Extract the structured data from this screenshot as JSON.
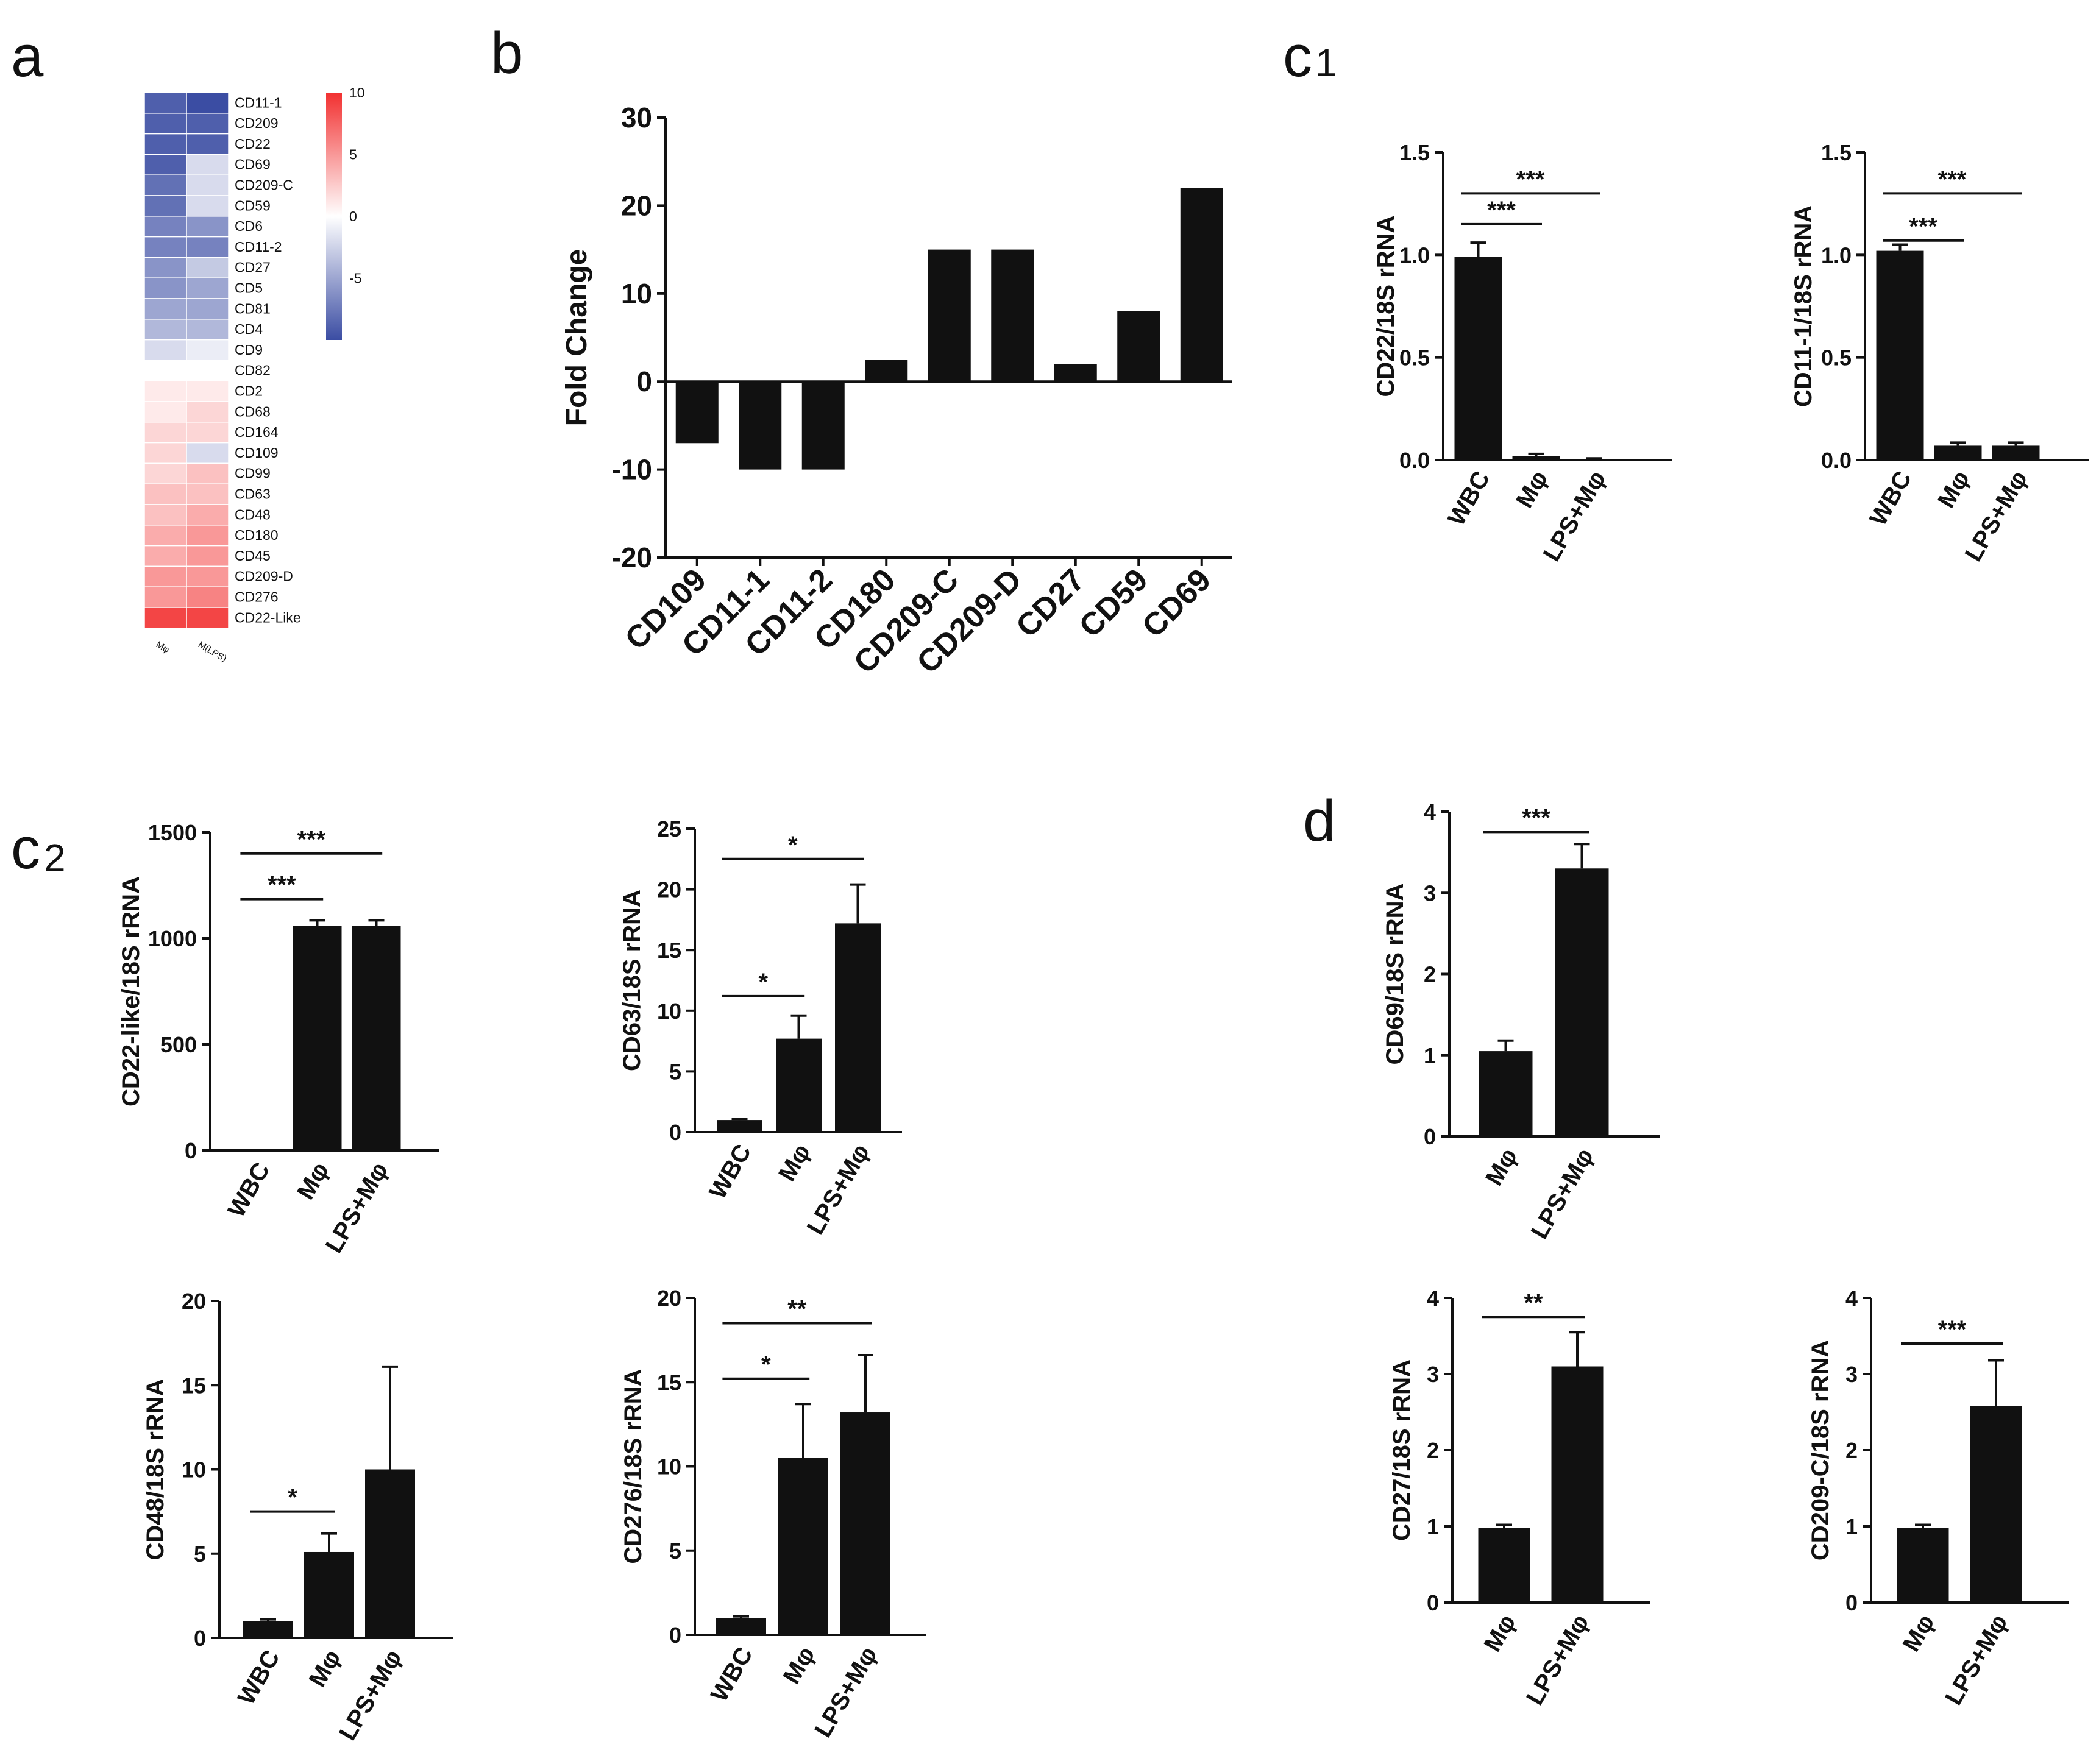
{
  "panel_labels": {
    "a": "a",
    "b": "b",
    "c1": "c",
    "c1_sub": "1",
    "c2": "c",
    "c2_sub": "2",
    "d": "d"
  },
  "colors": {
    "bar": "#111111",
    "heat_low": "#3b4da3",
    "heat_mid": "#ffffff",
    "heat_high": "#f23030"
  },
  "chart_data": [
    {
      "id": "a",
      "type": "heatmap",
      "columns": [
        "Mφ",
        "M(LPS)"
      ],
      "rows": [
        "CD11-1",
        "CD209",
        "CD22",
        "CD69",
        "CD209-C",
        "CD59",
        "CD6",
        "CD11-2",
        "CD27",
        "CD5",
        "CD81",
        "CD4",
        "CD9",
        "CD82",
        "CD2",
        "CD68",
        "CD164",
        "CD109",
        "CD99",
        "CD63",
        "CD48",
        "CD180",
        "CD45",
        "CD209-D",
        "CD276",
        "CD22-Like"
      ],
      "values": [
        [
          -9,
          -10
        ],
        [
          -9,
          -9
        ],
        [
          -9,
          -9
        ],
        [
          -9,
          -2
        ],
        [
          -8,
          -2
        ],
        [
          -8,
          -2
        ],
        [
          -7,
          -6
        ],
        [
          -7,
          -7
        ],
        [
          -6,
          -3
        ],
        [
          -6,
          -5
        ],
        [
          -5,
          -5
        ],
        [
          -4,
          -4
        ],
        [
          -2,
          -1
        ],
        [
          0,
          0
        ],
        [
          1,
          1
        ],
        [
          1,
          2
        ],
        [
          2,
          2
        ],
        [
          2,
          -2
        ],
        [
          2,
          3
        ],
        [
          3,
          3
        ],
        [
          3,
          4
        ],
        [
          4,
          5
        ],
        [
          4,
          5
        ],
        [
          5,
          5
        ],
        [
          5,
          6
        ],
        [
          9,
          9
        ]
      ],
      "colorbar": {
        "min": -10,
        "max": 10,
        "ticks": [
          10,
          5,
          0,
          -5
        ]
      }
    },
    {
      "id": "b",
      "type": "bar",
      "ylabel": "Fold Change",
      "ylim": [
        -20,
        30
      ],
      "yticks": [
        30,
        20,
        10,
        0,
        -10,
        -20
      ],
      "categories": [
        "CD109",
        "CD11-1",
        "CD11-2",
        "CD180",
        "CD209-C",
        "CD209-D",
        "CD27",
        "CD59",
        "CD69"
      ],
      "values": [
        -7,
        -10,
        -10,
        2.5,
        15,
        15,
        2,
        8,
        22
      ]
    },
    {
      "id": "c1_left",
      "type": "bar",
      "ylabel": "CD22/18S rRNA",
      "ylim": [
        0,
        1.5
      ],
      "yticks": [
        "0.0",
        "0.5",
        "1.0",
        "1.5"
      ],
      "categories": [
        "WBC",
        "Mφ",
        "LPS+Mφ"
      ],
      "values": [
        0.99,
        0.02,
        0.005
      ],
      "errors": [
        0.07,
        0.01,
        0.003
      ],
      "significance": [
        {
          "from": 0,
          "to": 2,
          "label": "***",
          "y": 1.3
        },
        {
          "from": 0,
          "to": 1,
          "label": "***",
          "y": 1.15
        }
      ]
    },
    {
      "id": "c1_right",
      "type": "bar",
      "ylabel": "CD11-1/18S rRNA",
      "ylim": [
        0,
        1.5
      ],
      "yticks": [
        "0.0",
        "0.5",
        "1.0",
        "1.5"
      ],
      "categories": [
        "WBC",
        "Mφ",
        "LPS+Mφ"
      ],
      "values": [
        1.02,
        0.07,
        0.07
      ],
      "errors": [
        0.03,
        0.015,
        0.015
      ],
      "significance": [
        {
          "from": 0,
          "to": 2,
          "label": "***",
          "y": 1.3
        },
        {
          "from": 0,
          "to": 1,
          "label": "***",
          "y": 1.07
        }
      ]
    },
    {
      "id": "c2_cd22like",
      "type": "bar",
      "ylabel": "CD22-like/18S rRNA",
      "ylim": [
        0,
        1500
      ],
      "yticks": [
        "0",
        "500",
        "1000",
        "1500"
      ],
      "categories": [
        "WBC",
        "Mφ",
        "LPS+Mφ"
      ],
      "values": [
        0,
        1060,
        1060
      ],
      "errors": [
        0,
        25,
        25
      ],
      "significance": [
        {
          "from": 0,
          "to": 2,
          "label": "***",
          "y": 1400
        },
        {
          "from": 0,
          "to": 1,
          "label": "***",
          "y": 1185
        }
      ]
    },
    {
      "id": "c2_cd63",
      "type": "bar",
      "ylabel": "CD63/18S rRNA",
      "ylim": [
        0,
        25
      ],
      "yticks": [
        "0",
        "5",
        "10",
        "15",
        "20",
        "25"
      ],
      "categories": [
        "WBC",
        "Mφ",
        "LPS+Mφ"
      ],
      "values": [
        1.0,
        7.7,
        17.2
      ],
      "errors": [
        0.1,
        1.9,
        3.2
      ],
      "significance": [
        {
          "from": 0,
          "to": 2,
          "label": "*",
          "y": 22.5
        },
        {
          "from": 0,
          "to": 1,
          "label": "*",
          "y": 11.2
        }
      ]
    },
    {
      "id": "c2_cd48",
      "type": "bar",
      "ylabel": "CD48/18S rRNA",
      "ylim": [
        0,
        20
      ],
      "yticks": [
        "0",
        "5",
        "10",
        "15",
        "20"
      ],
      "categories": [
        "WBC",
        "Mφ",
        "LPS+Mφ"
      ],
      "values": [
        1.0,
        5.1,
        10.0
      ],
      "errors": [
        0.1,
        1.1,
        6.1
      ],
      "significance": [
        {
          "from": 0,
          "to": 1,
          "label": "*",
          "y": 7.5
        }
      ]
    },
    {
      "id": "c2_cd276",
      "type": "bar",
      "ylabel": "CD276/18S rRNA",
      "ylim": [
        0,
        20
      ],
      "yticks": [
        "0",
        "5",
        "10",
        "15",
        "20"
      ],
      "categories": [
        "WBC",
        "Mφ",
        "LPS+Mφ"
      ],
      "values": [
        1.0,
        10.5,
        13.2
      ],
      "errors": [
        0.1,
        3.2,
        3.4
      ],
      "significance": [
        {
          "from": 0,
          "to": 2,
          "label": "**",
          "y": 18.5
        },
        {
          "from": 0,
          "to": 1,
          "label": "*",
          "y": 15.2
        }
      ]
    },
    {
      "id": "d_cd69",
      "type": "bar",
      "ylabel": "CD69/18S rRNA",
      "ylim": [
        0,
        4
      ],
      "yticks": [
        "0",
        "1",
        "2",
        "3",
        "4"
      ],
      "categories": [
        "Mφ",
        "LPS+Mφ"
      ],
      "values": [
        1.05,
        3.3
      ],
      "errors": [
        0.13,
        0.3
      ],
      "significance": [
        {
          "from": 0,
          "to": 1,
          "label": "***",
          "y": 3.75
        }
      ]
    },
    {
      "id": "d_cd27",
      "type": "bar",
      "ylabel": "CD27/18S rRNA",
      "ylim": [
        0,
        4
      ],
      "yticks": [
        "0",
        "1",
        "2",
        "3",
        "4"
      ],
      "categories": [
        "Mφ",
        "LPS+Mφ"
      ],
      "values": [
        0.98,
        3.1
      ],
      "errors": [
        0.04,
        0.45
      ],
      "significance": [
        {
          "from": 0,
          "to": 1,
          "label": "**",
          "y": 3.75
        }
      ]
    },
    {
      "id": "d_cd209c",
      "type": "bar",
      "ylabel": "CD209-C/18S rRNA",
      "ylim": [
        0,
        4
      ],
      "yticks": [
        "0",
        "1",
        "2",
        "3",
        "4"
      ],
      "categories": [
        "Mφ",
        "LPS+Mφ"
      ],
      "values": [
        0.98,
        2.58
      ],
      "errors": [
        0.04,
        0.6
      ],
      "significance": [
        {
          "from": 0,
          "to": 1,
          "label": "***",
          "y": 3.4
        }
      ]
    }
  ]
}
